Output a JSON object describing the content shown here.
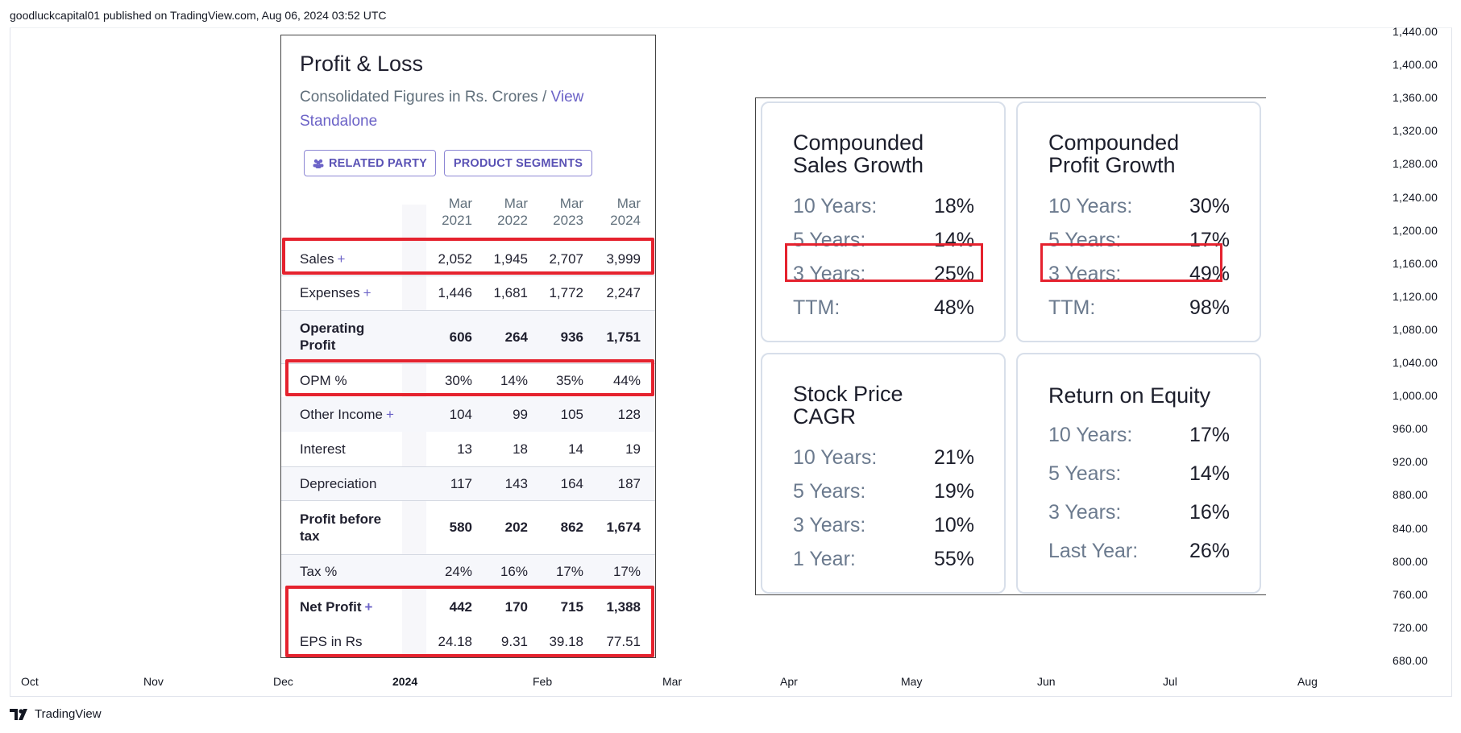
{
  "header": {
    "published": "goodluckcapital01 published on TradingView.com, Aug 06, 2024 03:52 UTC"
  },
  "price_axis": [
    "1,440.00",
    "1,400.00",
    "1,360.00",
    "1,320.00",
    "1,280.00",
    "1,240.00",
    "1,200.00",
    "1,160.00",
    "1,120.00",
    "1,080.00",
    "1,040.00",
    "1,000.00",
    "960.00",
    "920.00",
    "880.00",
    "840.00",
    "800.00",
    "760.00",
    "720.00",
    "680.00"
  ],
  "time_axis": [
    "Oct",
    "Nov",
    "Dec",
    "2024",
    "Feb",
    "Mar",
    "Apr",
    "May",
    "Jun",
    "Jul",
    "Aug"
  ],
  "footer": {
    "brand": "TradingView"
  },
  "pl": {
    "title": "Profit & Loss",
    "subtitle": "Consolidated Figures in Rs. Crores / ",
    "subtitle_link": "View Standalone",
    "buttons": {
      "related_party": "RELATED PARTY",
      "product_segments": "PRODUCT SEGMENTS"
    },
    "columns": [
      {
        "l1": "Mar",
        "l2": "2021"
      },
      {
        "l1": "Mar",
        "l2": "2022"
      },
      {
        "l1": "Mar",
        "l2": "2023"
      },
      {
        "l1": "Mar",
        "l2": "2024"
      }
    ],
    "rows": [
      {
        "label": "Sales",
        "plus": "+",
        "values": [
          "2,052",
          "1,945",
          "2,707",
          "3,999"
        ]
      },
      {
        "label": "Expenses",
        "plus": "+",
        "values": [
          "1,446",
          "1,681",
          "1,772",
          "2,247"
        ]
      },
      {
        "label": "Operating Profit",
        "plus": "",
        "values": [
          "606",
          "264",
          "936",
          "1,751"
        ]
      },
      {
        "label": "OPM %",
        "plus": "",
        "values": [
          "30%",
          "14%",
          "35%",
          "44%"
        ]
      },
      {
        "label": "Other Income",
        "plus": "+",
        "values": [
          "104",
          "99",
          "105",
          "128"
        ]
      },
      {
        "label": "Interest",
        "plus": "",
        "values": [
          "13",
          "18",
          "14",
          "19"
        ]
      },
      {
        "label": "Depreciation",
        "plus": "",
        "values": [
          "117",
          "143",
          "164",
          "187"
        ]
      },
      {
        "label": "Profit before tax",
        "plus": "",
        "values": [
          "580",
          "202",
          "862",
          "1,674"
        ]
      },
      {
        "label": "Tax %",
        "plus": "",
        "values": [
          "24%",
          "16%",
          "17%",
          "17%"
        ]
      },
      {
        "label": "Net Profit",
        "plus": "+",
        "values": [
          "442",
          "170",
          "715",
          "1,388"
        ]
      },
      {
        "label": "EPS in Rs",
        "plus": "",
        "values": [
          "24.18",
          "9.31",
          "39.18",
          "77.51"
        ]
      }
    ]
  },
  "growth": {
    "sales": {
      "title_l1": "Compounded",
      "title_l2": "Sales Growth",
      "rows": [
        {
          "k": "10 Years:",
          "v": "18%"
        },
        {
          "k": "5 Years:",
          "v": "14%"
        },
        {
          "k": "3 Years:",
          "v": "25%"
        },
        {
          "k": "TTM:",
          "v": "48%"
        }
      ]
    },
    "profit": {
      "title_l1": "Compounded",
      "title_l2": "Profit Growth",
      "rows": [
        {
          "k": "10 Years:",
          "v": "30%"
        },
        {
          "k": "5 Years:",
          "v": "17%"
        },
        {
          "k": "3 Years:",
          "v": "49%"
        },
        {
          "k": "TTM:",
          "v": "98%"
        }
      ]
    },
    "stock": {
      "title_l1": "Stock Price",
      "title_l2": "CAGR",
      "rows": [
        {
          "k": "10 Years:",
          "v": "21%"
        },
        {
          "k": "5 Years:",
          "v": "19%"
        },
        {
          "k": "3 Years:",
          "v": "10%"
        },
        {
          "k": "1 Year:",
          "v": "55%"
        }
      ]
    },
    "roe": {
      "title_l1": "Return on Equity",
      "rows": [
        {
          "k": "10 Years:",
          "v": "17%"
        },
        {
          "k": "5 Years:",
          "v": "14%"
        },
        {
          "k": "3 Years:",
          "v": "16%"
        },
        {
          "k": "Last Year:",
          "v": "26%"
        }
      ]
    }
  }
}
